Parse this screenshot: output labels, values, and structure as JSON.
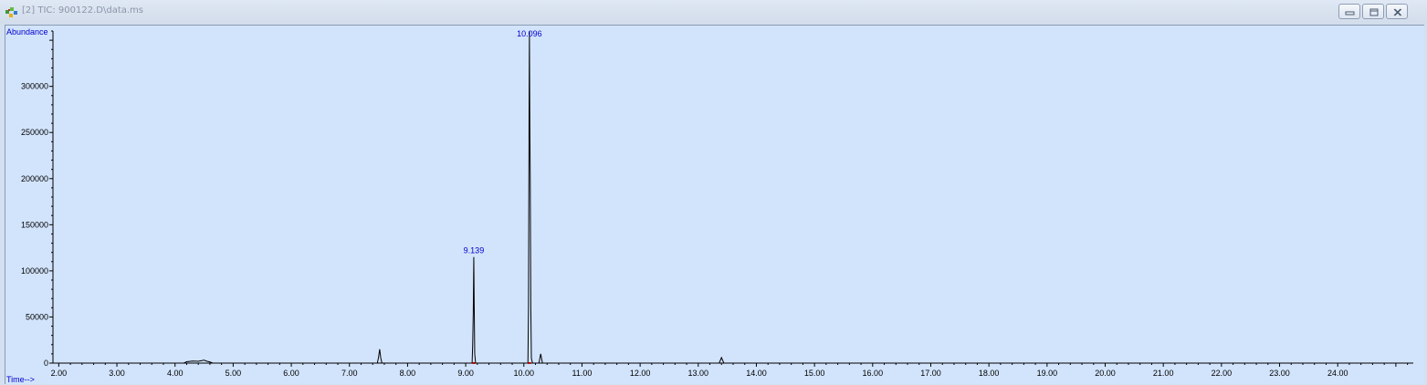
{
  "window": {
    "title": "[2] TIC: 900122.D\\data.ms",
    "app_icon": "chemstation-icon",
    "controls": [
      {
        "name": "minimize-button",
        "icon": "minimize-icon"
      },
      {
        "name": "restore-button",
        "icon": "restore-icon"
      },
      {
        "name": "close-button",
        "icon": "close-icon"
      }
    ]
  },
  "colors": {
    "plot_background": "#d2e4fc",
    "trace": "#000000",
    "axis_label": "#0000cc",
    "peak_label": "#0000cc",
    "baseline_marker": "#cc0000"
  },
  "chart_data": {
    "type": "line",
    "ylabel": "Abundance",
    "xlabel": "Time-->",
    "xlim": [
      1.9,
      25.3
    ],
    "ylim": [
      0,
      360000
    ],
    "x_ticks": [
      "2.00",
      "3.00",
      "4.00",
      "5.00",
      "6.00",
      "7.00",
      "8.00",
      "9.00",
      "10.00",
      "11.00",
      "12.00",
      "13.00",
      "14.00",
      "15.00",
      "16.00",
      "17.00",
      "18.00",
      "19.00",
      "20.00",
      "21.00",
      "22.00",
      "23.00",
      "24.00"
    ],
    "y_ticks": [
      "0",
      "50000",
      "100000",
      "150000",
      "200000",
      "250000",
      "300000"
    ],
    "grid": false,
    "peak_labels": [
      {
        "time": 9.139,
        "text": "9.139",
        "abundance": 115000
      },
      {
        "time": 10.096,
        "text": "10.096",
        "abundance": 360000
      }
    ],
    "series": [
      {
        "points": [
          [
            1.9,
            0
          ],
          [
            4.15,
            0
          ],
          [
            4.2,
            1500
          ],
          [
            4.3,
            2200
          ],
          [
            4.4,
            2000
          ],
          [
            4.5,
            3200
          ],
          [
            4.55,
            2000
          ],
          [
            4.6,
            1200
          ],
          [
            4.65,
            0
          ],
          [
            7.48,
            0
          ],
          [
            7.5,
            6000
          ],
          [
            7.52,
            15000
          ],
          [
            7.54,
            5000
          ],
          [
            7.56,
            0
          ],
          [
            9.11,
            0
          ],
          [
            9.12,
            20000
          ],
          [
            9.13,
            55000
          ],
          [
            9.139,
            115000
          ],
          [
            9.145,
            70000
          ],
          [
            9.155,
            10000
          ],
          [
            9.17,
            0
          ],
          [
            10.07,
            0
          ],
          [
            10.08,
            60000
          ],
          [
            10.09,
            270000
          ],
          [
            10.096,
            360000
          ],
          [
            10.102,
            270000
          ],
          [
            10.11,
            200000
          ],
          [
            10.12,
            60000
          ],
          [
            10.13,
            5000
          ],
          [
            10.15,
            0
          ],
          [
            10.26,
            0
          ],
          [
            10.29,
            10000
          ],
          [
            10.32,
            0
          ],
          [
            13.36,
            0
          ],
          [
            13.4,
            6000
          ],
          [
            13.44,
            0
          ],
          [
            25.3,
            0
          ]
        ]
      }
    ],
    "baseline_markers": [
      9.139,
      10.096
    ]
  }
}
